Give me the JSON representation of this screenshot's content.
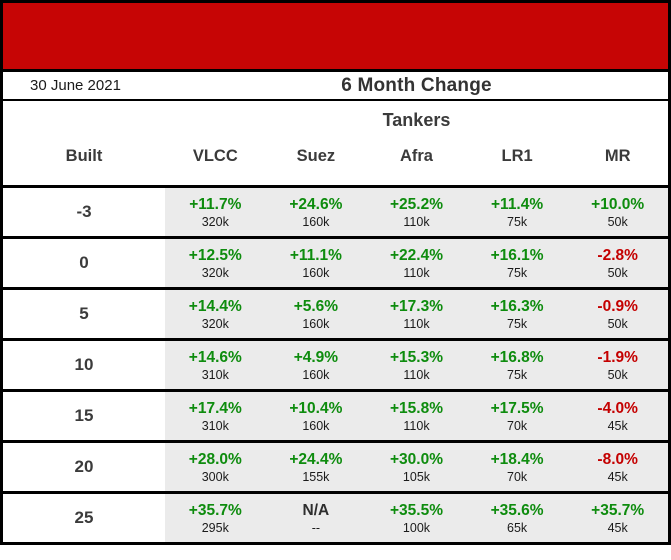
{
  "header": {
    "date": "30 June 2021",
    "period_title": "6 Month Change",
    "section_title": "Tankers"
  },
  "table": {
    "built_label": "Built",
    "types": [
      "VLCC",
      "Suez",
      "Afra",
      "LR1",
      "MR"
    ]
  },
  "colors": {
    "banner_red": "#c60505",
    "positive_green": "#0e8c0e",
    "negative_red": "#c40000",
    "neutral_dark": "#2e2e2e",
    "cell_background": "#ebebeb"
  },
  "chart_data": {
    "type": "table",
    "title": "6 Month Change",
    "subtitle": "Tankers",
    "date": "30 June 2021",
    "columns": [
      "Built",
      "VLCC",
      "Suez",
      "Afra",
      "LR1",
      "MR"
    ],
    "rows": [
      {
        "built": "-3",
        "changes": [
          "+11.7%",
          "+24.6%",
          "+25.2%",
          "+11.4%",
          "+10.0%"
        ],
        "sizes": [
          "320k",
          "160k",
          "110k",
          "75k",
          "50k"
        ]
      },
      {
        "built": "0",
        "changes": [
          "+12.5%",
          "+11.1%",
          "+22.4%",
          "+16.1%",
          "-2.8%"
        ],
        "sizes": [
          "320k",
          "160k",
          "110k",
          "75k",
          "50k"
        ]
      },
      {
        "built": "5",
        "changes": [
          "+14.4%",
          "+5.6%",
          "+17.3%",
          "+16.3%",
          "-0.9%"
        ],
        "sizes": [
          "320k",
          "160k",
          "110k",
          "75k",
          "50k"
        ]
      },
      {
        "built": "10",
        "changes": [
          "+14.6%",
          "+4.9%",
          "+15.3%",
          "+16.8%",
          "-1.9%"
        ],
        "sizes": [
          "310k",
          "160k",
          "110k",
          "75k",
          "50k"
        ]
      },
      {
        "built": "15",
        "changes": [
          "+17.4%",
          "+10.4%",
          "+15.8%",
          "+17.5%",
          "-4.0%"
        ],
        "sizes": [
          "310k",
          "160k",
          "110k",
          "70k",
          "45k"
        ]
      },
      {
        "built": "20",
        "changes": [
          "+28.0%",
          "+24.4%",
          "+30.0%",
          "+18.4%",
          "-8.0%"
        ],
        "sizes": [
          "300k",
          "155k",
          "105k",
          "70k",
          "45k"
        ]
      },
      {
        "built": "25",
        "changes": [
          "+35.7%",
          "N/A",
          "+35.5%",
          "+35.6%",
          "+35.7%"
        ],
        "sizes": [
          "295k",
          "--",
          "100k",
          "65k",
          "45k"
        ]
      }
    ]
  }
}
